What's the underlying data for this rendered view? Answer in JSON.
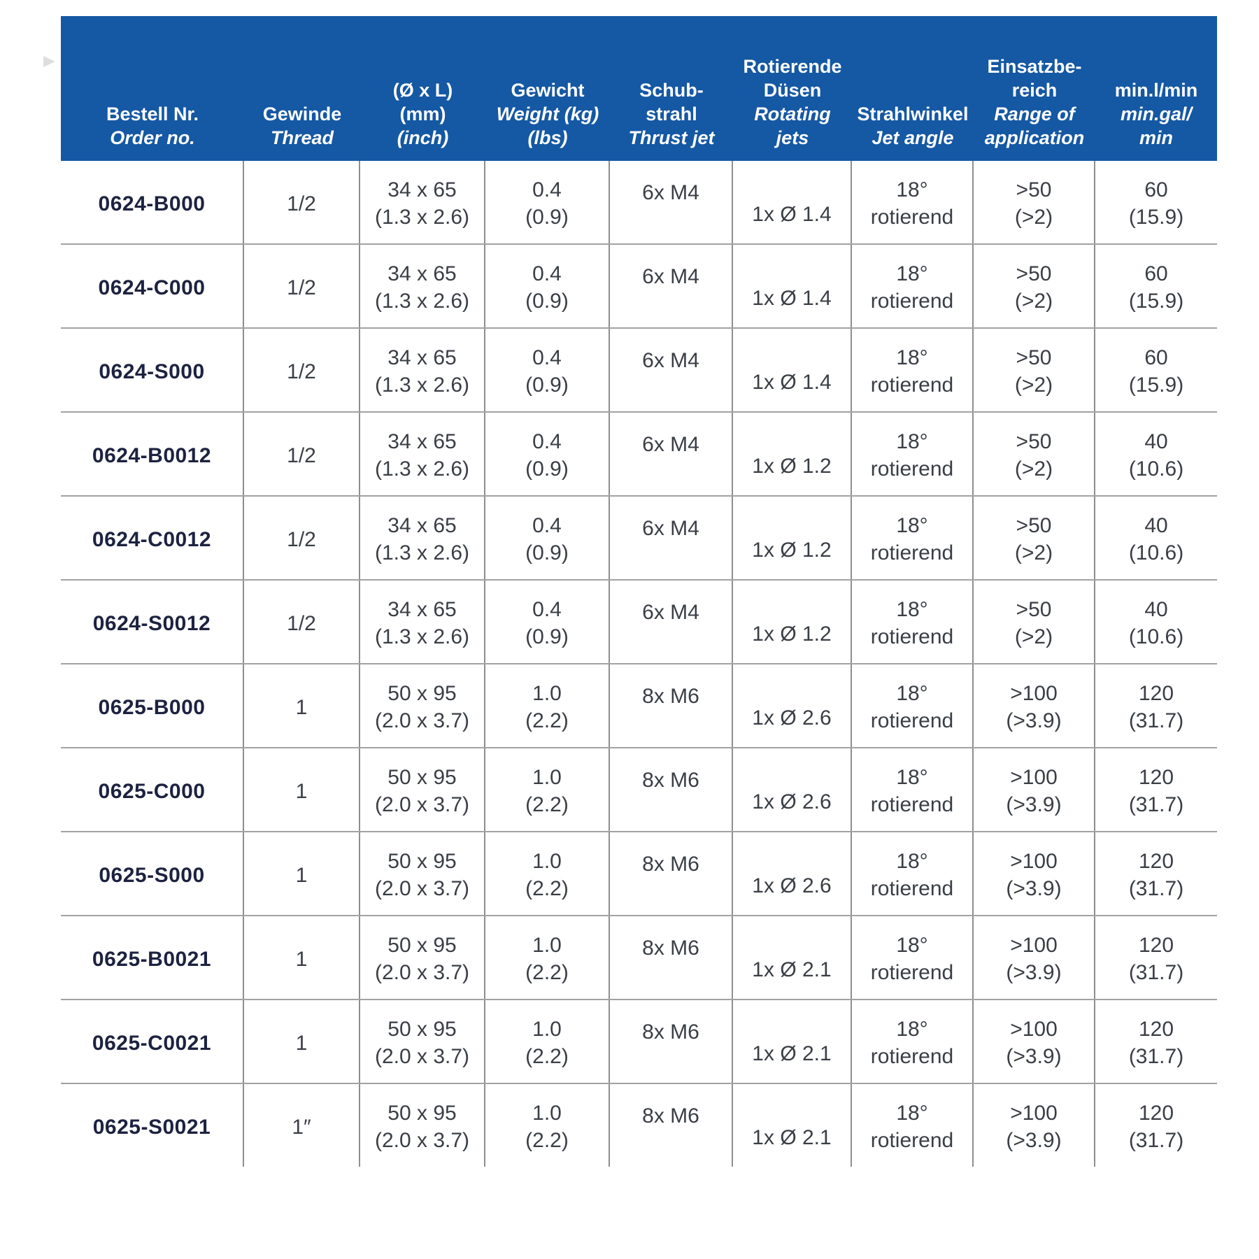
{
  "colors": {
    "header_bg": "#1558a3",
    "header_text": "#ffffff",
    "body_text": "#3a3e45",
    "order_no_text": "#1d2240",
    "grid_line_vertical": "#8e8e8e",
    "grid_line_horizontal": "#a2a2a2"
  },
  "table": {
    "header": {
      "cols": [
        {
          "lines": [
            "Bestell Nr.",
            "Order no."
          ]
        },
        {
          "lines": [
            "Gewinde",
            "Thread"
          ]
        },
        {
          "lines": [
            "(Ø x L)",
            "(mm)",
            "(inch)"
          ]
        },
        {
          "lines": [
            "Gewicht",
            "Weight (kg)",
            "(lbs)"
          ]
        },
        {
          "lines": [
            "Schub-",
            "strahl",
            "Thrust jet"
          ]
        },
        {
          "lines": [
            "Rotierende",
            "Düsen",
            "Rotating",
            "jets"
          ]
        },
        {
          "lines": [
            "Strahlwinkel",
            "Jet angle"
          ]
        },
        {
          "lines": [
            "Einsatzbe-",
            "reich",
            "Range of",
            "application"
          ]
        },
        {
          "lines": [
            "min.l/min",
            "min.gal/",
            "min"
          ]
        }
      ]
    },
    "rows": [
      {
        "order_no": "0624-B000",
        "thread": "1/2",
        "size_mm": "34 x 65",
        "size_inch": "(1.3 x 2.6)",
        "weight_kg": "0.4",
        "weight_lbs": "(0.9)",
        "thrust_jet": "6x M4",
        "rotating_jets": "1x Ø 1.4",
        "jet_angle": "18°",
        "jet_mode": "rotierend",
        "range_1": ">50",
        "range_2": "(>2)",
        "flow_1": "60",
        "flow_2": "(15.9)"
      },
      {
        "order_no": "0624-C000",
        "thread": "1/2",
        "size_mm": "34 x 65",
        "size_inch": "(1.3 x 2.6)",
        "weight_kg": "0.4",
        "weight_lbs": "(0.9)",
        "thrust_jet": "6x M4",
        "rotating_jets": "1x Ø 1.4",
        "jet_angle": "18°",
        "jet_mode": "rotierend",
        "range_1": ">50",
        "range_2": "(>2)",
        "flow_1": "60",
        "flow_2": "(15.9)"
      },
      {
        "order_no": "0624-S000",
        "thread": "1/2",
        "size_mm": "34 x 65",
        "size_inch": "(1.3 x 2.6)",
        "weight_kg": "0.4",
        "weight_lbs": "(0.9)",
        "thrust_jet": "6x M4",
        "rotating_jets": "1x Ø 1.4",
        "jet_angle": "18°",
        "jet_mode": "rotierend",
        "range_1": ">50",
        "range_2": "(>2)",
        "flow_1": "60",
        "flow_2": "(15.9)"
      },
      {
        "order_no": "0624-B0012",
        "thread": "1/2",
        "size_mm": "34 x 65",
        "size_inch": "(1.3 x 2.6)",
        "weight_kg": "0.4",
        "weight_lbs": "(0.9)",
        "thrust_jet": "6x M4",
        "rotating_jets": "1x Ø 1.2",
        "jet_angle": "18°",
        "jet_mode": "rotierend",
        "range_1": ">50",
        "range_2": "(>2)",
        "flow_1": "40",
        "flow_2": "(10.6)"
      },
      {
        "order_no": "0624-C0012",
        "thread": "1/2",
        "size_mm": "34 x 65",
        "size_inch": "(1.3 x 2.6)",
        "weight_kg": "0.4",
        "weight_lbs": "(0.9)",
        "thrust_jet": "6x M4",
        "rotating_jets": "1x Ø 1.2",
        "jet_angle": "18°",
        "jet_mode": "rotierend",
        "range_1": ">50",
        "range_2": "(>2)",
        "flow_1": "40",
        "flow_2": "(10.6)"
      },
      {
        "order_no": "0624-S0012",
        "thread": "1/2",
        "size_mm": "34 x 65",
        "size_inch": "(1.3 x 2.6)",
        "weight_kg": "0.4",
        "weight_lbs": "(0.9)",
        "thrust_jet": "6x M4",
        "rotating_jets": "1x Ø 1.2",
        "jet_angle": "18°",
        "jet_mode": "rotierend",
        "range_1": ">50",
        "range_2": "(>2)",
        "flow_1": "40",
        "flow_2": "(10.6)"
      },
      {
        "order_no": "0625-B000",
        "thread": "1",
        "size_mm": "50 x 95",
        "size_inch": "(2.0 x 3.7)",
        "weight_kg": "1.0",
        "weight_lbs": "(2.2)",
        "thrust_jet": "8x M6",
        "rotating_jets": "1x Ø 2.6",
        "jet_angle": "18°",
        "jet_mode": "rotierend",
        "range_1": ">100",
        "range_2": "(>3.9)",
        "flow_1": "120",
        "flow_2": "(31.7)"
      },
      {
        "order_no": "0625-C000",
        "thread": "1",
        "size_mm": "50 x 95",
        "size_inch": "(2.0 x 3.7)",
        "weight_kg": "1.0",
        "weight_lbs": "(2.2)",
        "thrust_jet": "8x M6",
        "rotating_jets": "1x Ø 2.6",
        "jet_angle": "18°",
        "jet_mode": "rotierend",
        "range_1": ">100",
        "range_2": "(>3.9)",
        "flow_1": "120",
        "flow_2": "(31.7)"
      },
      {
        "order_no": "0625-S000",
        "thread": "1",
        "size_mm": "50 x 95",
        "size_inch": "(2.0 x 3.7)",
        "weight_kg": "1.0",
        "weight_lbs": "(2.2)",
        "thrust_jet": "8x M6",
        "rotating_jets": "1x Ø 2.6",
        "jet_angle": "18°",
        "jet_mode": "rotierend",
        "range_1": ">100",
        "range_2": "(>3.9)",
        "flow_1": "120",
        "flow_2": "(31.7)"
      },
      {
        "order_no": "0625-B0021",
        "thread": "1",
        "size_mm": "50 x 95",
        "size_inch": "(2.0 x 3.7)",
        "weight_kg": "1.0",
        "weight_lbs": "(2.2)",
        "thrust_jet": "8x M6",
        "rotating_jets": "1x Ø 2.1",
        "jet_angle": "18°",
        "jet_mode": "rotierend",
        "range_1": ">100",
        "range_2": "(>3.9)",
        "flow_1": "120",
        "flow_2": "(31.7)"
      },
      {
        "order_no": "0625-C0021",
        "thread": "1",
        "size_mm": "50 x 95",
        "size_inch": "(2.0 x 3.7)",
        "weight_kg": "1.0",
        "weight_lbs": "(2.2)",
        "thrust_jet": "8x M6",
        "rotating_jets": "1x Ø 2.1",
        "jet_angle": "18°",
        "jet_mode": "rotierend",
        "range_1": ">100",
        "range_2": "(>3.9)",
        "flow_1": "120",
        "flow_2": "(31.7)"
      },
      {
        "order_no": "0625-S0021",
        "thread": "1″",
        "size_mm": "50 x 95",
        "size_inch": "(2.0 x 3.7)",
        "weight_kg": "1.0",
        "weight_lbs": "(2.2)",
        "thrust_jet": "8x M6",
        "rotating_jets": "1x Ø 2.1",
        "jet_angle": "18°",
        "jet_mode": "rotierend",
        "range_1": ">100",
        "range_2": "(>3.9)",
        "flow_1": "120",
        "flow_2": "(31.7)"
      }
    ]
  }
}
